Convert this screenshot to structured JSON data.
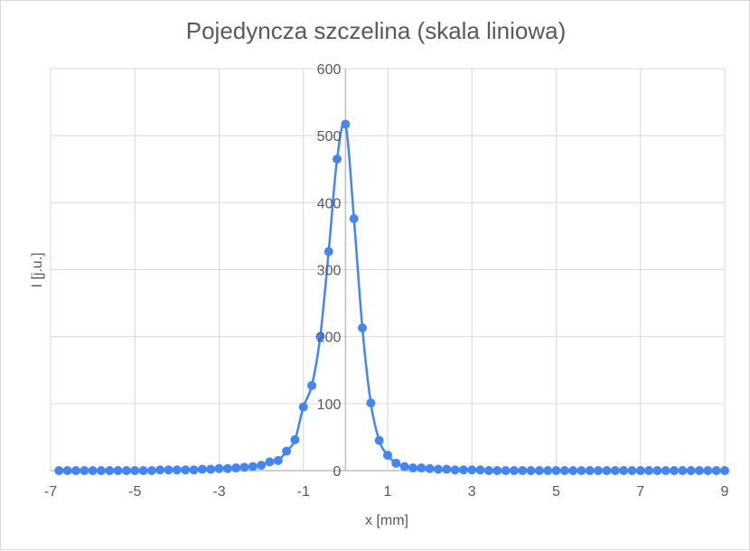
{
  "chart_data": {
    "type": "scatter",
    "title": "Pojedyncza szczelina (skala liniowa)",
    "xlabel": "x [mm]",
    "ylabel": "I [j.u.]",
    "xlim": [
      -7,
      9
    ],
    "ylim": [
      0,
      600
    ],
    "x_ticks": [
      "-7",
      "-5",
      "-3",
      "-1",
      "1",
      "3",
      "5",
      "7",
      "9"
    ],
    "y_ticks": [
      "0",
      "100",
      "200",
      "300",
      "400",
      "500",
      "600"
    ],
    "grid": true,
    "legend": "none",
    "series_color": "#4285f4",
    "series": [
      {
        "x": [
          -6.8,
          -6.6,
          -6.4,
          -6.2,
          -6.0,
          -5.8,
          -5.6,
          -5.4,
          -5.2,
          -5.0,
          -4.8,
          -4.6,
          -4.4,
          -4.2,
          -4.0,
          -3.8,
          -3.6,
          -3.4,
          -3.2,
          -3.0,
          -2.8,
          -2.6,
          -2.4,
          -2.2,
          -2.0,
          -1.8,
          -1.6,
          -1.4,
          -1.2,
          -1.0,
          -0.8,
          -0.6,
          -0.4,
          -0.2,
          0.0,
          0.2,
          0.4,
          0.6,
          0.8,
          1.0,
          1.2,
          1.4,
          1.6,
          1.8,
          2.0,
          2.2,
          2.4,
          2.6,
          2.8,
          3.0,
          3.2,
          3.4,
          3.6,
          3.8,
          4.0,
          4.2,
          4.4,
          4.6,
          4.8,
          5.0,
          5.2,
          5.4,
          5.6,
          5.8,
          6.0,
          6.2,
          6.4,
          6.6,
          6.8,
          7.0,
          7.2,
          7.4,
          7.6,
          7.8,
          8.0,
          8.2,
          8.4,
          8.6,
          8.8,
          9.0
        ],
        "y": [
          0,
          0,
          0,
          0,
          0,
          0,
          0,
          0,
          0,
          0,
          0,
          0,
          1,
          1,
          1,
          1,
          1,
          2,
          2,
          3,
          3,
          4,
          5,
          6,
          8,
          13,
          15,
          29,
          46,
          95,
          127,
          200,
          327,
          465,
          517,
          376,
          213,
          101,
          45,
          23,
          11,
          6,
          4,
          4,
          3,
          2,
          2,
          1,
          1,
          1,
          1,
          0,
          0,
          0,
          0,
          0,
          0,
          0,
          0,
          0,
          0,
          0,
          0,
          0,
          0,
          0,
          0,
          0,
          0,
          0,
          0,
          0,
          0,
          0,
          0,
          0,
          0,
          0,
          0,
          0
        ]
      }
    ]
  }
}
